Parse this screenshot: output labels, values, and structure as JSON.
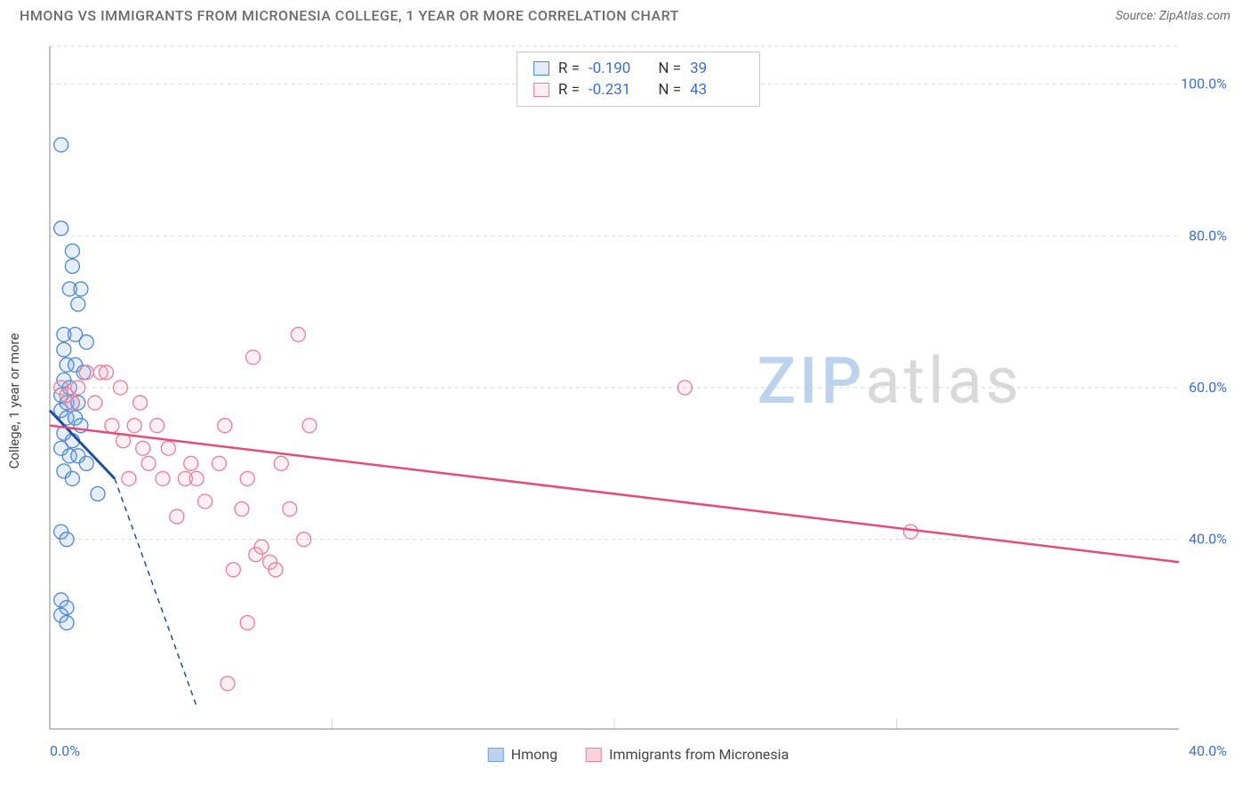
{
  "header": {
    "title": "HMONG VS IMMIGRANTS FROM MICRONESIA COLLEGE, 1 YEAR OR MORE CORRELATION CHART",
    "source_prefix": "Source: ",
    "source_name": "ZipAtlas.com"
  },
  "watermark": {
    "part1": "ZIP",
    "part2": "atlas"
  },
  "chart": {
    "type": "scatter",
    "y_axis_label": "College, 1 year or more",
    "xlim": [
      0,
      40
    ],
    "ylim": [
      15,
      105
    ],
    "x_ticks": [
      0,
      10,
      20,
      30,
      40
    ],
    "x_tick_labels": [
      "0.0%",
      "",
      "",
      "",
      "40.0%"
    ],
    "y_ticks": [
      40,
      60,
      80,
      100
    ],
    "y_tick_labels": [
      "40.0%",
      "60.0%",
      "80.0%",
      "100.0%"
    ],
    "grid_color": "#d7d7d7",
    "grid_dash": "4 4",
    "axis_color": "#9a9a9a",
    "background_color": "#ffffff",
    "tick_label_color": "#3b6fc9",
    "tick_label_fontsize": 16,
    "marker_radius": 8,
    "marker_stroke_width": 1.3,
    "marker_fill_opacity": 0.18,
    "series": [
      {
        "name": "Hmong",
        "color": "#6fa1de",
        "stroke": "#4d87d1",
        "line_color": "#1f4e9c",
        "R": "-0.190",
        "N": "39",
        "regression": {
          "x1": 0,
          "y1": 57,
          "x2": 2.3,
          "y2": 48,
          "solid_until_x": 2.3,
          "dash_to_x": 5.2,
          "dash_to_y": 18
        },
        "points": [
          [
            0.4,
            92
          ],
          [
            0.4,
            81
          ],
          [
            0.8,
            78
          ],
          [
            0.8,
            76
          ],
          [
            0.7,
            73
          ],
          [
            1.1,
            73
          ],
          [
            1.0,
            71
          ],
          [
            0.5,
            67
          ],
          [
            0.9,
            67
          ],
          [
            1.3,
            66
          ],
          [
            0.5,
            65
          ],
          [
            0.6,
            63
          ],
          [
            0.9,
            63
          ],
          [
            1.2,
            62
          ],
          [
            0.5,
            61
          ],
          [
            0.7,
            60
          ],
          [
            0.4,
            59
          ],
          [
            0.6,
            58
          ],
          [
            0.8,
            58
          ],
          [
            1.0,
            58
          ],
          [
            0.4,
            57
          ],
          [
            0.6,
            56
          ],
          [
            0.9,
            56
          ],
          [
            1.1,
            55
          ],
          [
            0.5,
            54
          ],
          [
            0.8,
            53
          ],
          [
            0.4,
            52
          ],
          [
            0.7,
            51
          ],
          [
            1.0,
            51
          ],
          [
            1.3,
            50
          ],
          [
            0.5,
            49
          ],
          [
            0.8,
            48
          ],
          [
            1.7,
            46
          ],
          [
            0.4,
            41
          ],
          [
            0.6,
            40
          ],
          [
            0.4,
            32
          ],
          [
            0.6,
            31
          ],
          [
            0.4,
            30
          ],
          [
            0.6,
            29
          ]
        ]
      },
      {
        "name": "Immigrants from Micronesia",
        "color": "#f2a9ba",
        "stroke": "#e87e99",
        "line_color": "#e64b7a",
        "R": "-0.231",
        "N": "43",
        "regression": {
          "x1": 0,
          "y1": 55,
          "x2": 40,
          "y2": 37
        },
        "points": [
          [
            0.4,
            60
          ],
          [
            0.6,
            59
          ],
          [
            0.8,
            58
          ],
          [
            1.0,
            60
          ],
          [
            1.3,
            62
          ],
          [
            1.6,
            58
          ],
          [
            1.8,
            62
          ],
          [
            2.0,
            62
          ],
          [
            2.2,
            55
          ],
          [
            2.5,
            60
          ],
          [
            2.6,
            53
          ],
          [
            2.8,
            48
          ],
          [
            3.0,
            55
          ],
          [
            3.2,
            58
          ],
          [
            3.3,
            52
          ],
          [
            3.5,
            50
          ],
          [
            3.8,
            55
          ],
          [
            4.0,
            48
          ],
          [
            4.2,
            52
          ],
          [
            4.5,
            43
          ],
          [
            4.8,
            48
          ],
          [
            5.0,
            50
          ],
          [
            5.2,
            48
          ],
          [
            5.5,
            45
          ],
          [
            6.0,
            50
          ],
          [
            6.2,
            55
          ],
          [
            6.5,
            36
          ],
          [
            6.8,
            44
          ],
          [
            7.0,
            48
          ],
          [
            7.0,
            29
          ],
          [
            7.2,
            64
          ],
          [
            7.3,
            38
          ],
          [
            7.5,
            39
          ],
          [
            7.8,
            37
          ],
          [
            8.0,
            36
          ],
          [
            8.2,
            50
          ],
          [
            8.5,
            44
          ],
          [
            8.8,
            67
          ],
          [
            9.0,
            40
          ],
          [
            9.2,
            55
          ],
          [
            6.3,
            21
          ],
          [
            22.5,
            60
          ],
          [
            30.5,
            41
          ]
        ]
      }
    ]
  },
  "legend": {
    "items": [
      {
        "label": "Hmong",
        "fill": "#bcd3ee",
        "stroke": "#6fa1de"
      },
      {
        "label": "Immigrants from Micronesia",
        "fill": "#f7d3dc",
        "stroke": "#e87e99"
      }
    ]
  }
}
